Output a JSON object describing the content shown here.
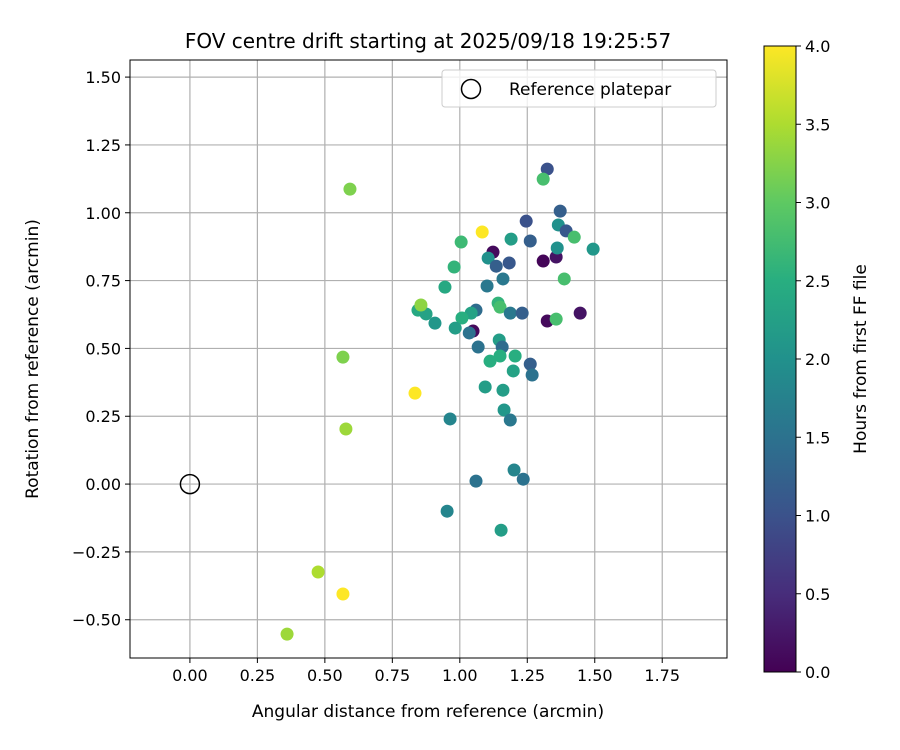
{
  "chart_data": {
    "type": "scatter",
    "title": "FOV centre drift starting at 2025/09/18 19:25:57",
    "xlabel": "Angular distance from reference (arcmin)",
    "ylabel": "Rotation from reference (arcmin)",
    "xlim": [
      -0.222,
      1.99
    ],
    "ylim": [
      -0.641,
      1.563
    ],
    "xticks": [
      0.0,
      0.25,
      0.5,
      0.75,
      1.0,
      1.25,
      1.5,
      1.75
    ],
    "xtick_labels": [
      "0.00",
      "0.25",
      "0.50",
      "0.75",
      "1.00",
      "1.25",
      "1.50",
      "1.75"
    ],
    "yticks": [
      -0.5,
      -0.25,
      0.0,
      0.25,
      0.5,
      0.75,
      1.0,
      1.25,
      1.5
    ],
    "ytick_labels": [
      "−0.50",
      "−0.25",
      "0.00",
      "0.25",
      "0.50",
      "0.75",
      "1.00",
      "1.25",
      "1.50"
    ],
    "grid": true,
    "legend": {
      "placement": "top-right",
      "entries": [
        "Reference platepar"
      ]
    },
    "reference_point": [
      0.0,
      0.0
    ],
    "colorbar": {
      "label": "Hours from first FF file",
      "range": [
        0.0,
        4.0
      ],
      "ticks": [
        0.0,
        0.5,
        1.0,
        1.5,
        2.0,
        2.5,
        3.0,
        3.5,
        4.0
      ],
      "tick_labels": [
        "0.0",
        "0.5",
        "1.0",
        "1.5",
        "2.0",
        "2.5",
        "3.0",
        "3.5",
        "4.0"
      ],
      "colormap": "viridis"
    },
    "point_fields": [
      "x",
      "y",
      "hours"
    ],
    "points": [
      [
        0.593,
        1.087,
        3.2
      ],
      [
        0.567,
        0.468,
        3.2
      ],
      [
        0.578,
        0.203,
        3.4
      ],
      [
        0.475,
        -0.324,
        3.5
      ],
      [
        0.567,
        -0.405,
        4.0
      ],
      [
        0.36,
        -0.553,
        3.4
      ],
      [
        0.834,
        0.335,
        4.0
      ],
      [
        1.083,
        0.929,
        4.0
      ],
      [
        1.324,
        1.161,
        1.0
      ],
      [
        1.309,
        1.124,
        2.8
      ],
      [
        1.246,
        0.969,
        1.0
      ],
      [
        1.372,
        1.006,
        1.2
      ],
      [
        1.365,
        0.955,
        2.0
      ],
      [
        1.394,
        0.933,
        1.1
      ],
      [
        1.424,
        0.91,
        2.8
      ],
      [
        1.494,
        0.866,
        2.1
      ],
      [
        1.261,
        0.896,
        1.2
      ],
      [
        1.19,
        0.903,
        2.2
      ],
      [
        1.005,
        0.892,
        2.7
      ],
      [
        1.123,
        0.855,
        0.1
      ],
      [
        1.105,
        0.833,
        2.0
      ],
      [
        1.135,
        0.803,
        1.2
      ],
      [
        1.183,
        0.815,
        1.1
      ],
      [
        1.309,
        0.822,
        0.05
      ],
      [
        1.357,
        0.837,
        0.2
      ],
      [
        1.361,
        0.87,
        2.0
      ],
      [
        0.979,
        0.8,
        2.6
      ],
      [
        1.16,
        0.756,
        1.6
      ],
      [
        1.387,
        0.756,
        2.8
      ],
      [
        1.101,
        0.73,
        1.6
      ],
      [
        0.945,
        0.726,
        2.4
      ],
      [
        0.845,
        0.641,
        2.4
      ],
      [
        0.875,
        0.627,
        2.3
      ],
      [
        0.908,
        0.593,
        2.1
      ],
      [
        0.856,
        0.66,
        3.3
      ],
      [
        1.142,
        0.667,
        2.6
      ],
      [
        1.149,
        0.652,
        2.8
      ],
      [
        1.06,
        0.641,
        1.4
      ],
      [
        1.042,
        0.63,
        2.3
      ],
      [
        1.008,
        0.612,
        2.5
      ],
      [
        1.049,
        0.564,
        0.1
      ],
      [
        1.035,
        0.557,
        1.5
      ],
      [
        0.983,
        0.575,
        2.2
      ],
      [
        1.187,
        0.63,
        1.6
      ],
      [
        1.231,
        0.63,
        1.2
      ],
      [
        1.324,
        0.601,
        0.1
      ],
      [
        1.357,
        0.608,
        2.8
      ],
      [
        1.446,
        0.63,
        0.2
      ],
      [
        1.068,
        0.505,
        1.5
      ],
      [
        1.146,
        0.531,
        2.2
      ],
      [
        1.157,
        0.505,
        1.4
      ],
      [
        1.112,
        0.453,
        2.5
      ],
      [
        1.149,
        0.472,
        2.5
      ],
      [
        1.205,
        0.472,
        2.5
      ],
      [
        1.198,
        0.417,
        2.3
      ],
      [
        1.261,
        0.442,
        1.2
      ],
      [
        1.268,
        0.402,
        1.5
      ],
      [
        1.094,
        0.358,
        2.2
      ],
      [
        1.16,
        0.346,
        2.2
      ],
      [
        1.164,
        0.273,
        2.1
      ],
      [
        1.187,
        0.236,
        1.6
      ],
      [
        0.964,
        0.24,
        1.8
      ],
      [
        1.201,
        0.052,
        1.8
      ],
      [
        1.235,
        0.018,
        1.5
      ],
      [
        1.06,
        0.011,
        1.5
      ],
      [
        0.953,
        -0.1,
        1.8
      ],
      [
        1.153,
        -0.17,
        2.2
      ]
    ]
  }
}
